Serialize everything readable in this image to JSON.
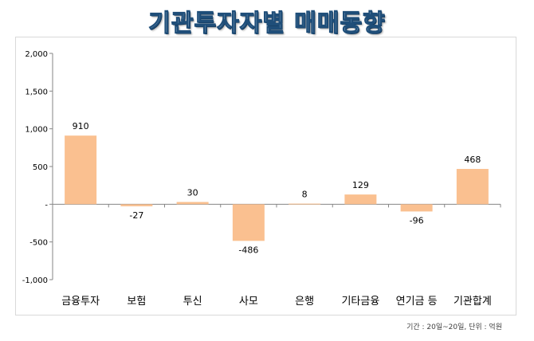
{
  "title": "기관투자자별 매매동향",
  "footnote": "기간 : 20일~20일, 단위 : 억원",
  "chart_data": {
    "type": "bar",
    "categories": [
      "금융투자",
      "보험",
      "투신",
      "사모",
      "은행",
      "기타금융",
      "연기금 등",
      "기관합계"
    ],
    "values": [
      910,
      -27,
      30,
      -486,
      8,
      129,
      -96,
      468
    ],
    "data_labels": [
      "910",
      "-27",
      "30",
      "-486",
      "8",
      "129",
      "-96",
      "468"
    ],
    "ylim": [
      -1000,
      2000
    ],
    "yticks": [
      -1000,
      -500,
      0,
      500,
      1000,
      1500,
      2000
    ],
    "ytick_labels": [
      "-1,000",
      "-500",
      "-",
      "500",
      "1,000",
      "1,500",
      "2,000"
    ],
    "bar_color": "#fac090",
    "grid": false,
    "legend": "none"
  }
}
